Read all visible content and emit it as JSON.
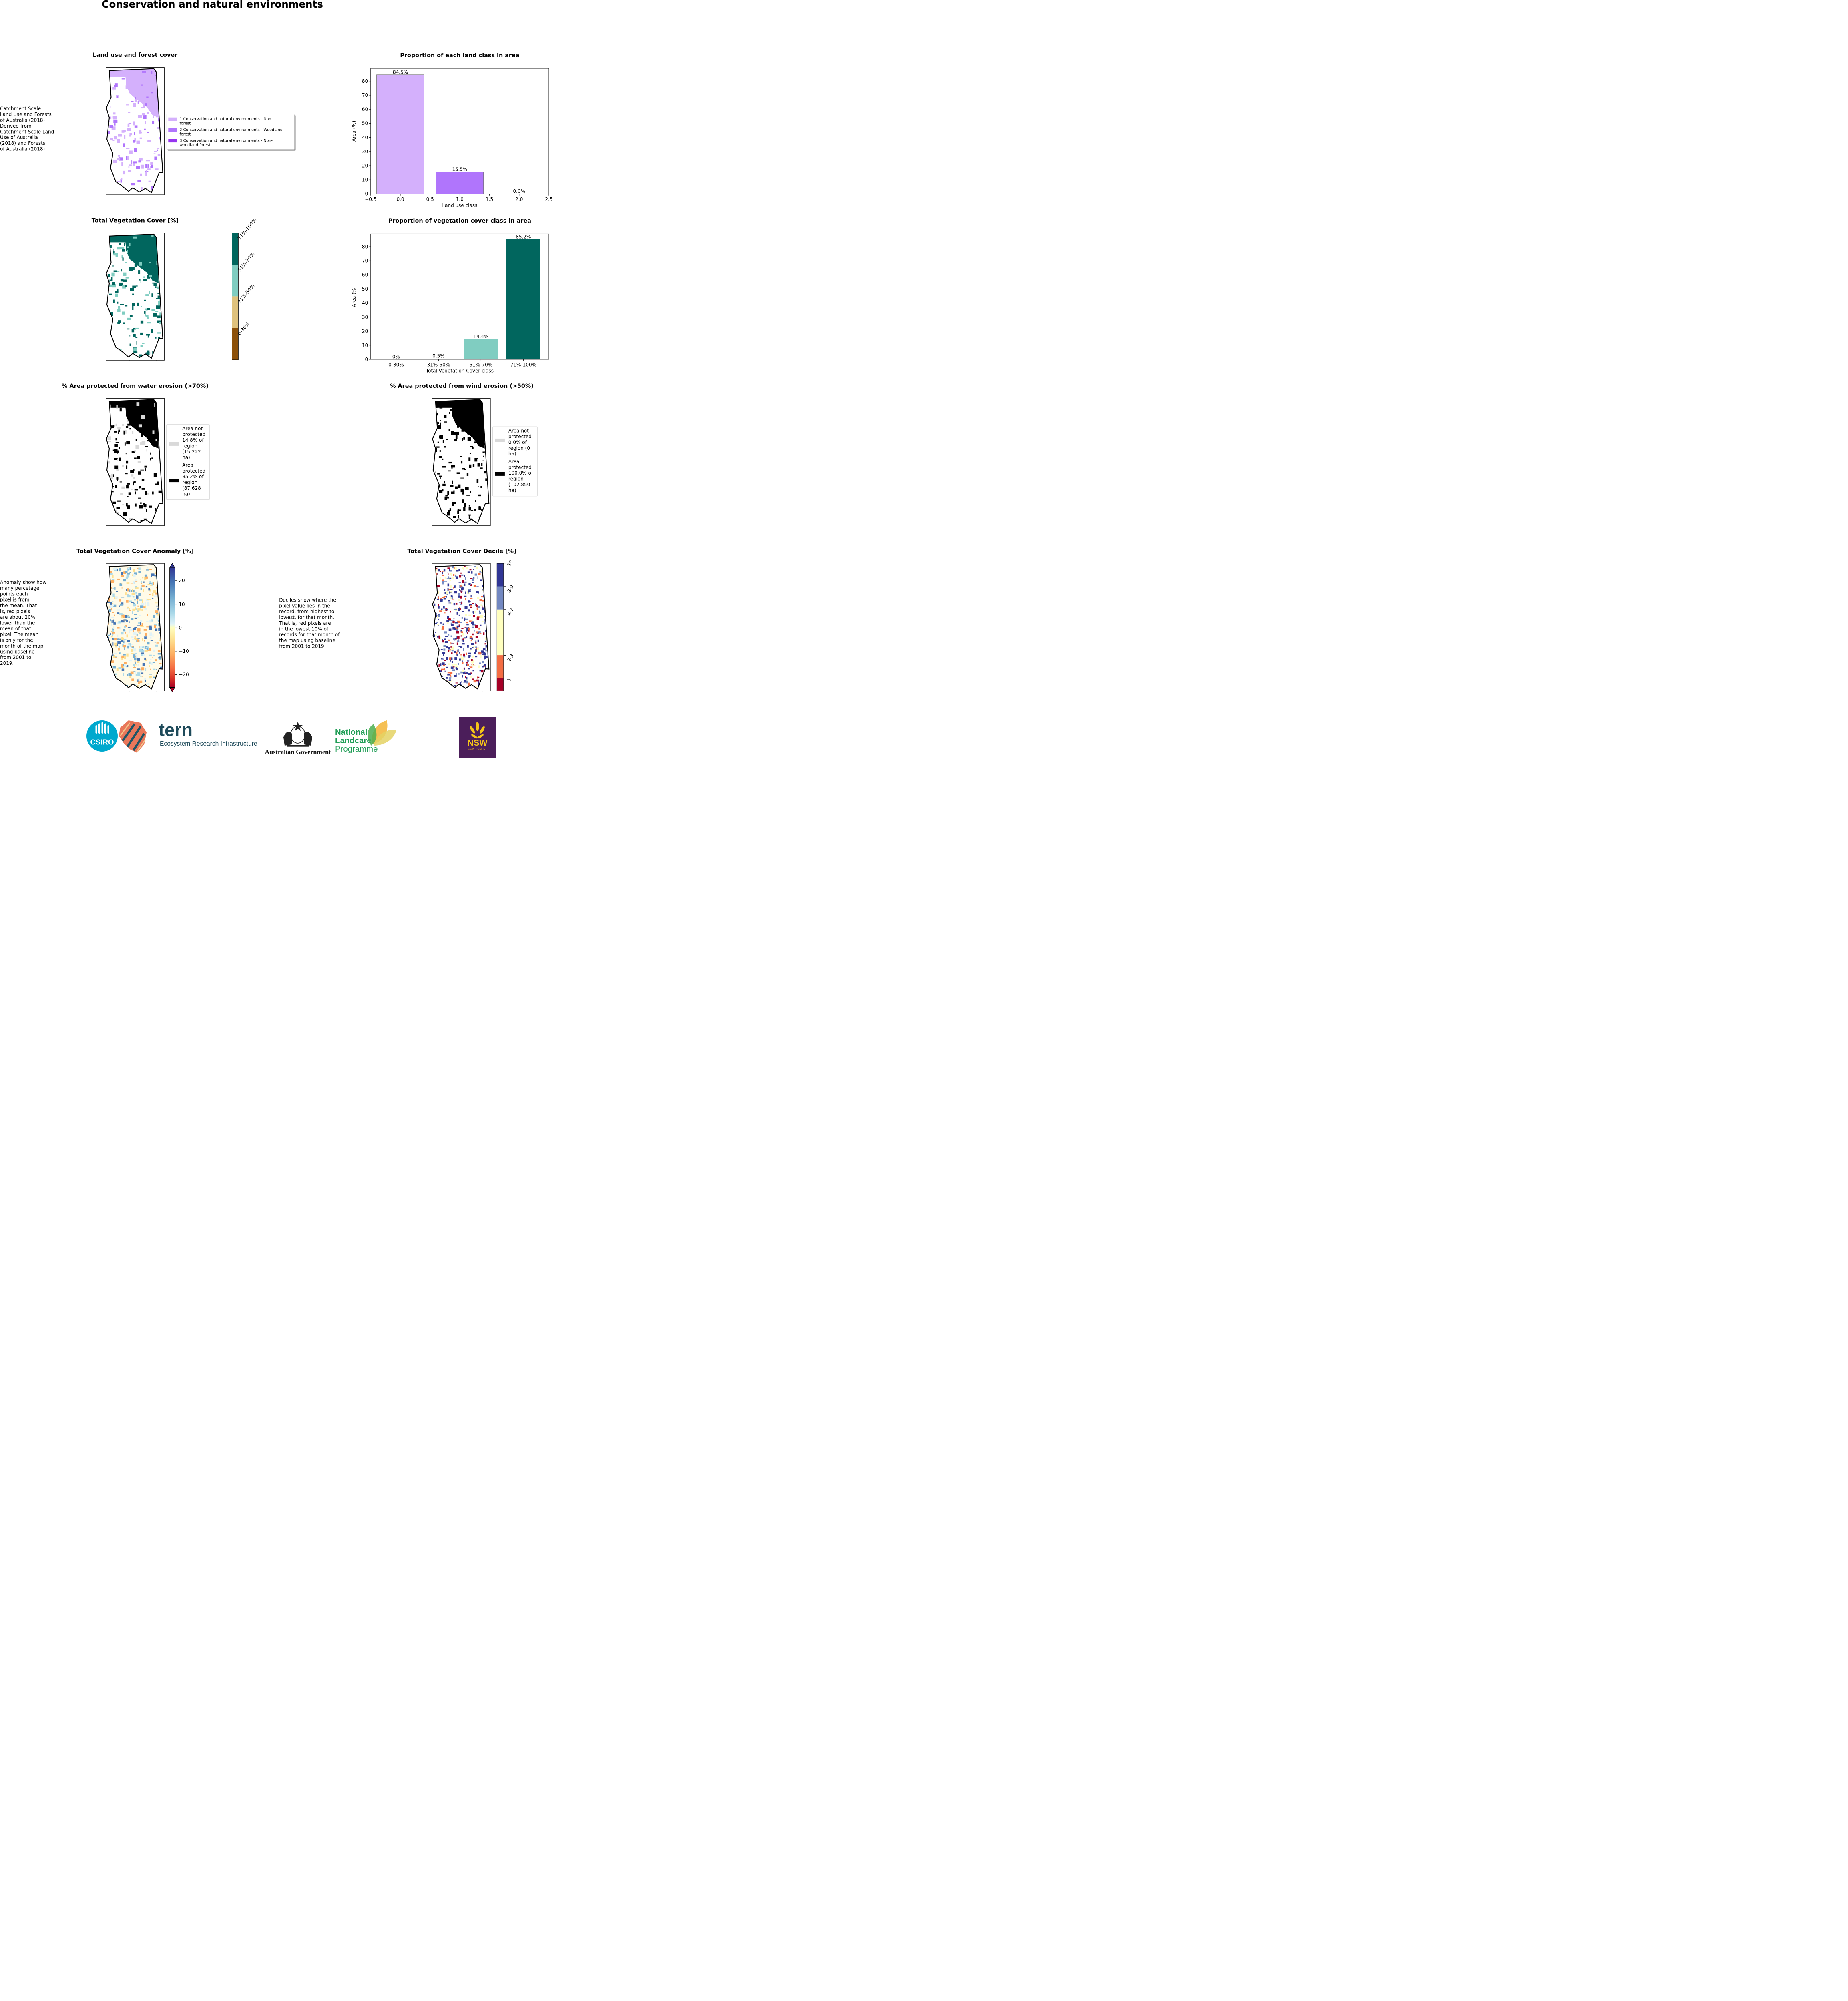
{
  "page_title": "Conservation and natural environments",
  "panels": {
    "land_use_map": {
      "title": "Land use and forest cover",
      "side_note": " Catchment Scale\nLand Use and Forests\nof Australia (2018)\nDerived from\nCatchment Scale Land\nUse of Australia\n(2018) and Forests\nof Australia (2018)",
      "legend": [
        {
          "label": "1 Conservation and natural environments - Non-\nforest",
          "color": "#d4b0fc"
        },
        {
          "label": "2 Conservation and natural environments - Woodland\nforest",
          "color": "#b075fc"
        },
        {
          "label": "3 Conservation and natural environments - Non-\nwoodland forest",
          "color": "#9735f0"
        }
      ]
    },
    "veg_cover_map": {
      "title": "Total Vegetation Cover [%]",
      "colorbar": [
        {
          "label": "0-30%",
          "color": "#8c510a"
        },
        {
          "label": "31%-50%",
          "color": "#dfc27d"
        },
        {
          "label": "51%-70%",
          "color": "#80cdc1"
        },
        {
          "label": "71%-100%",
          "color": "#01665e"
        }
      ]
    },
    "water_erosion_map": {
      "title": "% Area protected from water erosion (>70%)",
      "legend": [
        {
          "label": "Area not\nprotected\n14.8% of\nregion\n(15,222\nha)",
          "color": "#d9d9d9"
        },
        {
          "label": "Area\nprotected\n85.2% of\nregion\n(87,628\nha)",
          "color": "#000000"
        }
      ]
    },
    "wind_erosion_map": {
      "title": "% Area protected from wind erosion (>50%)",
      "legend": [
        {
          "label": "Area not\nprotected\n0.0% of\nregion (0\nha)",
          "color": "#d9d9d9"
        },
        {
          "label": "Area\nprotected\n100.0% of\nregion\n(102,850\nha)",
          "color": "#000000"
        }
      ]
    },
    "anomaly_map": {
      "title": "Total Vegetation Cover Anomaly [%]",
      "side_note": "Anomaly show how\nmany percetage\npoints each\npixel is from\nthe mean. That\nis, red pixels\nare about 20%\nlower than the\nmean of that\npixel. The mean\nis only for the\nmonth of the map\nusing baseline\nfrom 2001 to\n2019.",
      "colorbar_ticks": [
        "20",
        "10",
        "0",
        "−10",
        "−20"
      ]
    },
    "decile_map": {
      "title": "Total Vegetation Cover Decile [%]",
      "side_note": "Deciles show where the\npixel value lies in the\nrecord, from highest to\nlowest, for that month.\nThat is, red pixels are\nin the lowest 10% of\nrecords for that month of\nthe map using baseline\nfrom 2001 to 2019.",
      "colorbar": [
        {
          "label": "1",
          "color": "#a50026"
        },
        {
          "label": "2-3",
          "color": "#f46d43"
        },
        {
          "label": "4-7",
          "color": "#ffffbf"
        },
        {
          "label": "8-9",
          "color": "#7388c1"
        },
        {
          "label": "10",
          "color": "#313695"
        }
      ]
    }
  },
  "chart_data": [
    {
      "type": "bar",
      "title": "Proportion of each land class in area",
      "xlabel": "Land use class",
      "ylabel": "Area (%)",
      "x": [
        0,
        1,
        2
      ],
      "values": [
        84.5,
        15.5,
        0.0
      ],
      "data_labels": [
        "84.5%",
        "15.5%",
        "0.0%"
      ],
      "colors": [
        "#d4b0fc",
        "#b075fc",
        "#9735f0"
      ],
      "xlim": [
        -0.5,
        2.5
      ],
      "ylim": [
        0,
        89
      ],
      "xticks": [
        "−0.5",
        "0.0",
        "0.5",
        "1.0",
        "1.5",
        "2.0",
        "2.5"
      ],
      "xtick_values": [
        -0.5,
        0,
        0.5,
        1,
        1.5,
        2,
        2.5
      ],
      "yticks": [
        0,
        10,
        20,
        30,
        40,
        50,
        60,
        70,
        80
      ]
    },
    {
      "type": "bar",
      "title": "Proportion of vegetation cover class in area",
      "xlabel": "Total Vegetation Cover class",
      "ylabel": "Area (%)",
      "categories": [
        "0-30%",
        "31%-50%",
        "51%-70%",
        "71%-100%"
      ],
      "values": [
        0,
        0.5,
        14.4,
        85.2
      ],
      "data_labels": [
        "0%",
        "0.5%",
        "14.4%",
        "85.2%"
      ],
      "colors": [
        "#8c510a",
        "#dfc27d",
        "#80cdc1",
        "#01665e"
      ],
      "ylim": [
        0,
        89
      ],
      "yticks": [
        0,
        10,
        20,
        30,
        40,
        50,
        60,
        70,
        80
      ]
    }
  ],
  "logos": {
    "csiro": "CSIRO",
    "tern_name": "tern",
    "tern_tagline": "Ecosystem Research Infrastructure",
    "aus_gov": "Australian Government",
    "nlp_line1": "National",
    "nlp_line2": "Landcare",
    "nlp_line3": "Programme",
    "nsw": "NSW",
    "nsw_sub": "GOVERNMENT"
  }
}
